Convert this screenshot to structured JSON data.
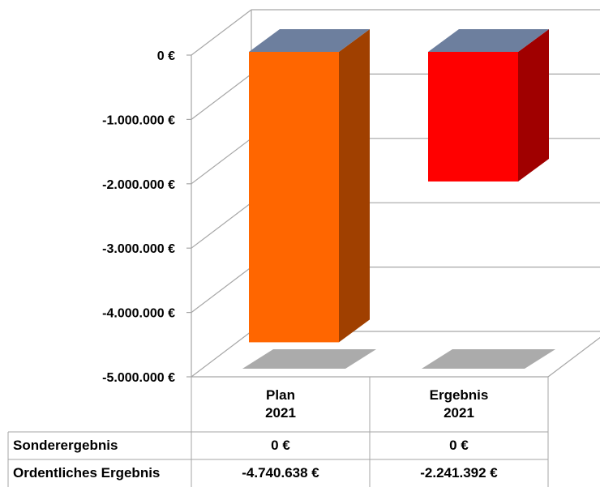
{
  "chart_data": {
    "type": "bar",
    "categories": [
      "Plan 2021",
      "Ergebnis 2021"
    ],
    "category_lines": [
      [
        "Plan",
        "2021"
      ],
      [
        "Ergebnis",
        "2021"
      ]
    ],
    "values": [
      -4740638,
      -2241392
    ],
    "colors": {
      "front": [
        "#ff6600",
        "#ff0000"
      ],
      "side": [
        "#a04000",
        "#a00000"
      ],
      "top": "#6d7f9e",
      "shadow": "#a6a6a6",
      "grid": "#a6a6a6"
    },
    "ylim": [
      -5000000,
      0
    ],
    "yticks": [
      0,
      -1000000,
      -2000000,
      -3000000,
      -4000000,
      -5000000
    ],
    "ytick_labels": [
      "0 €",
      "-1.000.000 €",
      "-2.000.000 €",
      "-3.000.000 €",
      "-4.000.000 €",
      "-5.000.000 €"
    ],
    "grid": true,
    "projection": "3d"
  },
  "table": {
    "rows": [
      {
        "label": "Sonderergebnis",
        "values": [
          "0 €",
          "0 €"
        ]
      },
      {
        "label": "Ordentliches Ergebnis",
        "values": [
          "-4.740.638 €",
          "-2.241.392 €"
        ]
      }
    ]
  }
}
